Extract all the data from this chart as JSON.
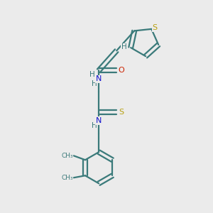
{
  "bg_color": "#ebebeb",
  "bond_color": "#3a7a7a",
  "S_color": "#b8a010",
  "O_color": "#cc2200",
  "N_color": "#1010cc",
  "H_color": "#3a7a7a",
  "line_width": 1.6,
  "figsize": [
    3.0,
    3.0
  ],
  "dpi": 100,
  "xlim": [
    0,
    10
  ],
  "ylim": [
    0,
    10
  ]
}
